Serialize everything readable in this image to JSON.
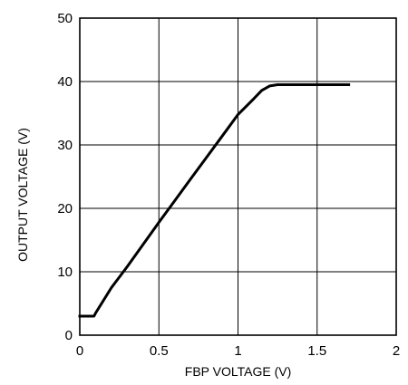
{
  "chart_data": {
    "type": "line",
    "xlabel": "FBP VOLTAGE (V)",
    "ylabel": "OUTPUT VOLTAGE (V)",
    "xlim": [
      0,
      2
    ],
    "ylim": [
      0,
      50
    ],
    "xticks": [
      0,
      0.5,
      1,
      1.5,
      2
    ],
    "yticks": [
      0,
      10,
      20,
      30,
      40,
      50
    ],
    "x_tick_labels": [
      "0",
      "0.5",
      "1",
      "1.5",
      "2"
    ],
    "y_tick_labels": [
      "0",
      "10",
      "20",
      "30",
      "40",
      "50"
    ],
    "grid": true,
    "line_color": "#000000",
    "series": [
      {
        "x": [
          0,
          0.09,
          0.1,
          0.15,
          0.2,
          0.3,
          0.4,
          0.5,
          0.6,
          0.7,
          0.8,
          0.9,
          1.0,
          1.1,
          1.15,
          1.2,
          1.25,
          1.27,
          1.7
        ],
        "y": [
          3,
          3,
          3.5,
          5.5,
          7.5,
          10.8,
          14.3,
          17.8,
          21.2,
          24.6,
          28.0,
          31.4,
          34.8,
          37.3,
          38.6,
          39.3,
          39.5,
          39.5,
          39.5
        ]
      }
    ]
  }
}
